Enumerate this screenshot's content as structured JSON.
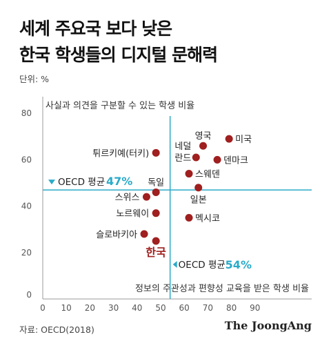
{
  "title_line1": "세계 주요국 보다 낮은",
  "title_line2": "한국 학생들의 디지털 문해력",
  "unit": "단위: %",
  "source": "자료: OECD(2018)",
  "publisher": "The JoongAng",
  "chart_data": {
    "type": "scatter",
    "ylabel": "사실과 의견을 구분할 수 있는 학생 비율",
    "xlabel": "정보의 주관성과 편향성 교육을 받은 학생 비율",
    "xlim": [
      0,
      100
    ],
    "ylim": [
      0,
      85
    ],
    "x_ticks": [
      0,
      10,
      20,
      30,
      40,
      50,
      60,
      70,
      80,
      90
    ],
    "y_ticks": [
      0,
      20,
      40,
      60,
      80
    ],
    "grid": false,
    "point_color": "#a01f1f",
    "avg_color": "#2aaac8",
    "highlight_color": "#a01f1f",
    "oecd_avg_y": {
      "label": "OECD 평균",
      "value": 47,
      "value_label": "47%"
    },
    "oecd_avg_x": {
      "label": "OECD 평균",
      "value": 54,
      "value_label": "54%"
    },
    "points": [
      {
        "name": "미국",
        "x": 79,
        "y": 69,
        "label_pos": "right"
      },
      {
        "name": "영국",
        "x": 68,
        "y": 66,
        "label_pos": "above"
      },
      {
        "name": "네덜란드",
        "x": 65,
        "y": 61,
        "label_pos": "left-split"
      },
      {
        "name": "덴마크",
        "x": 74,
        "y": 60,
        "label_pos": "right"
      },
      {
        "name": "튀르키예(터키)",
        "x": 48,
        "y": 63,
        "label_pos": "left"
      },
      {
        "name": "스웨덴",
        "x": 62,
        "y": 54,
        "label_pos": "right"
      },
      {
        "name": "일본",
        "x": 66,
        "y": 48,
        "label_pos": "below"
      },
      {
        "name": "독일",
        "x": 48,
        "y": 46,
        "label_pos": "above"
      },
      {
        "name": "스위스",
        "x": 44,
        "y": 44,
        "label_pos": "left"
      },
      {
        "name": "노르웨이",
        "x": 48,
        "y": 37,
        "label_pos": "left"
      },
      {
        "name": "멕시코",
        "x": 62,
        "y": 35,
        "label_pos": "right"
      },
      {
        "name": "슬로바키아",
        "x": 43,
        "y": 28,
        "label_pos": "left"
      },
      {
        "name": "한국",
        "x": 48,
        "y": 25,
        "label_pos": "below",
        "highlight": true
      }
    ]
  }
}
